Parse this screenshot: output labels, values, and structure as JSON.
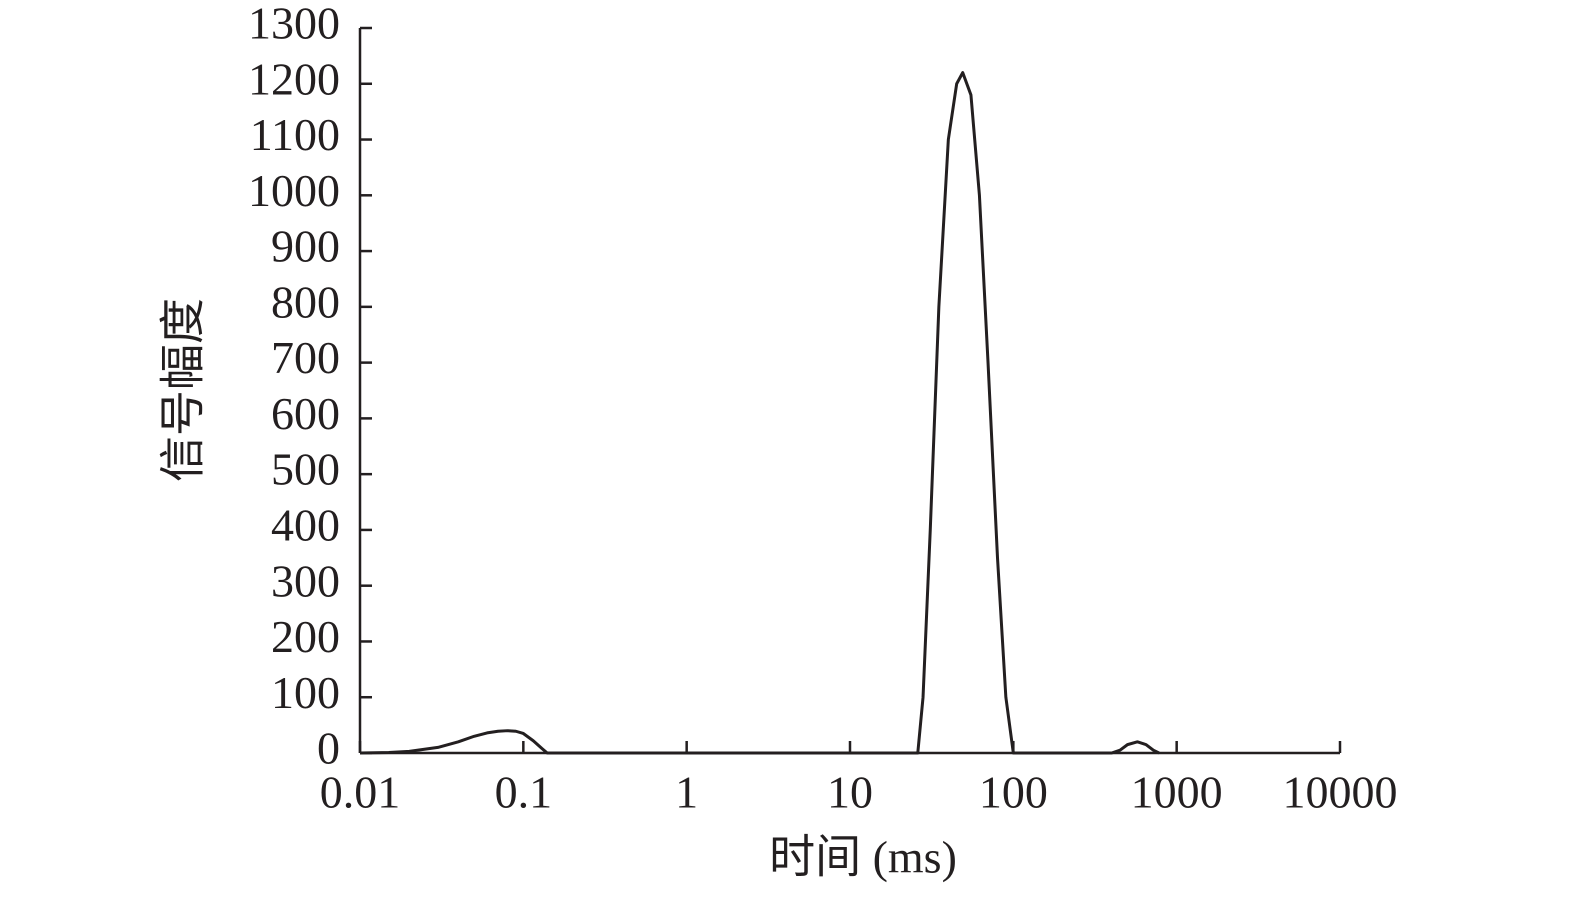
{
  "chart_data": {
    "type": "line",
    "x_label": "时间 (ms)",
    "y_label": "信号幅度",
    "log_x": true,
    "xlim": [
      0.01,
      10000
    ],
    "xticks": [
      0.01,
      0.1,
      1,
      10,
      100,
      1000,
      10000
    ],
    "ylim": [
      0,
      1300
    ],
    "yticks": [
      0,
      100,
      200,
      300,
      400,
      500,
      600,
      700,
      800,
      900,
      1000,
      1100,
      1200,
      1300
    ],
    "grid": false,
    "series": [
      {
        "color": "#231f20",
        "x": [
          0.01,
          0.015,
          0.02,
          0.03,
          0.04,
          0.05,
          0.06,
          0.07,
          0.08,
          0.09,
          0.1,
          0.115,
          0.13,
          0.14,
          1,
          10,
          26,
          28,
          31,
          35,
          40,
          45,
          49,
          55,
          62,
          70,
          80,
          90,
          100,
          400,
          450,
          500,
          575,
          650,
          720,
          780
        ],
        "values": [
          0,
          1,
          3,
          10,
          20,
          30,
          36,
          39,
          40,
          39,
          35,
          22,
          8,
          0,
          0,
          0,
          0,
          100,
          400,
          800,
          1100,
          1200,
          1220,
          1180,
          1000,
          700,
          350,
          100,
          0,
          0,
          5,
          15,
          20,
          15,
          5,
          0
        ]
      }
    ]
  }
}
